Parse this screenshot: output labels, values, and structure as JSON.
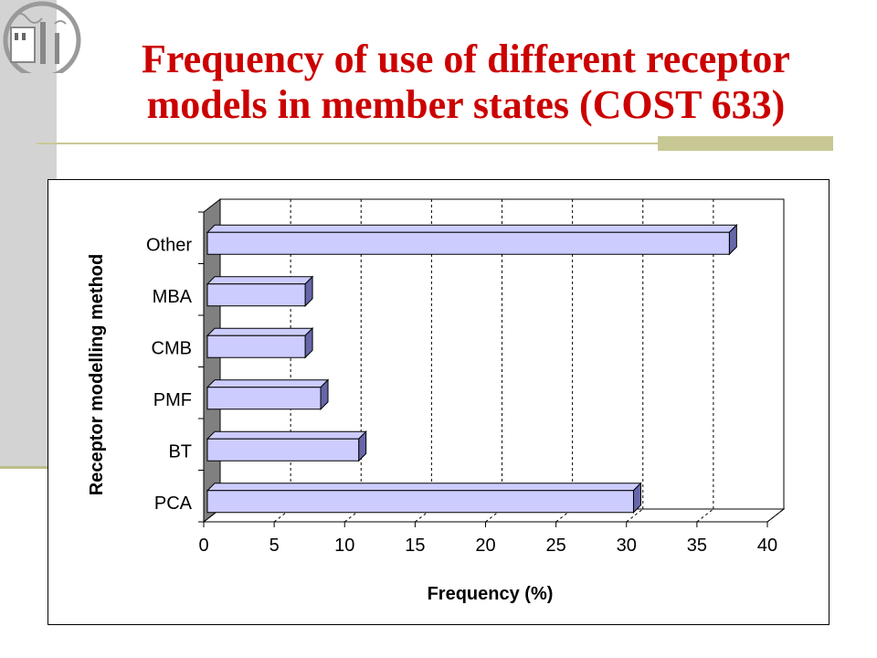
{
  "slide": {
    "title_line1": "Frequency of use of different receptor",
    "title_line2": "models in member states (COST 633)"
  },
  "colors": {
    "title": "#cc0000",
    "bar_face": "#ccccff",
    "bar_side": "#6666aa",
    "wall": "#808080",
    "accent": "#c8c894"
  },
  "chart_data": {
    "type": "bar",
    "orientation": "horizontal",
    "style": "3d",
    "categories": [
      "PCA",
      "BT",
      "PMF",
      "CMB",
      "MBA",
      "Other"
    ],
    "values": [
      30.5,
      11,
      8.3,
      7.2,
      7.2,
      37.3
    ],
    "xlabel": "Frequency (%)",
    "ylabel": "Receptor modelling method",
    "xlim": [
      0,
      40
    ],
    "xticks": [
      0,
      5,
      10,
      15,
      20,
      25,
      30,
      35,
      40
    ],
    "grid": "vertical dashed",
    "legend": "none"
  }
}
